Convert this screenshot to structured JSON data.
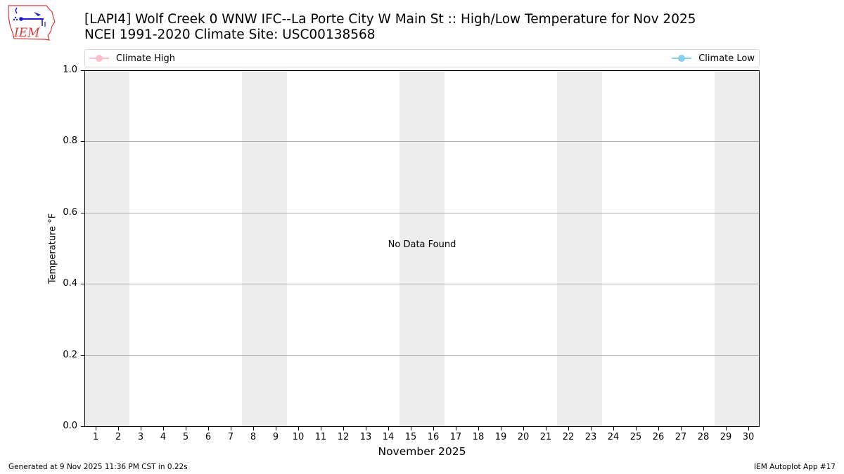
{
  "header": {
    "title_line1": "[LAPI4] Wolf Creek 0 WNW IFC--La Porte City W Main St :: High/Low Temperature for Nov 2025",
    "title_line2": "NCEI 1991-2020 Climate Site: USC00138568",
    "logo_text": "IEM"
  },
  "legend": {
    "items": [
      {
        "label": "Climate High",
        "color": "#ffc0cb"
      },
      {
        "label": "Climate Low",
        "color": "#87ceeb"
      }
    ]
  },
  "footer": {
    "generated": "Generated at 9 Nov 2025 11:36 PM CST in 0.22s",
    "app": "IEM Autoplot App #17"
  },
  "chart_data": {
    "type": "line",
    "title": "[LAPI4] Wolf Creek 0 WNW IFC--La Porte City W Main St :: High/Low Temperature for Nov 2025",
    "subtitle": "NCEI 1991-2020 Climate Site: USC00138568",
    "xlabel": "November 2025",
    "ylabel": "Temperature °F",
    "x": [
      1,
      2,
      3,
      4,
      5,
      6,
      7,
      8,
      9,
      10,
      11,
      12,
      13,
      14,
      15,
      16,
      17,
      18,
      19,
      20,
      21,
      22,
      23,
      24,
      25,
      26,
      27,
      28,
      29,
      30
    ],
    "xlim": [
      0.5,
      30.5
    ],
    "ylim": [
      0.0,
      1.0
    ],
    "yticks": [
      "0.0",
      "0.2",
      "0.4",
      "0.6",
      "0.8",
      "1.0"
    ],
    "series": [
      {
        "name": "Climate High",
        "color": "#ffc0cb",
        "values": []
      },
      {
        "name": "Climate Low",
        "color": "#87ceeb",
        "values": []
      }
    ],
    "annotation": "No Data Found",
    "weekend_bands": [
      [
        0.5,
        2.5
      ],
      [
        7.5,
        9.5
      ],
      [
        14.5,
        16.5
      ],
      [
        21.5,
        23.5
      ],
      [
        28.5,
        30.5
      ]
    ],
    "band_color": "#ececec",
    "grid": "horizontal",
    "legend_position": "top"
  }
}
